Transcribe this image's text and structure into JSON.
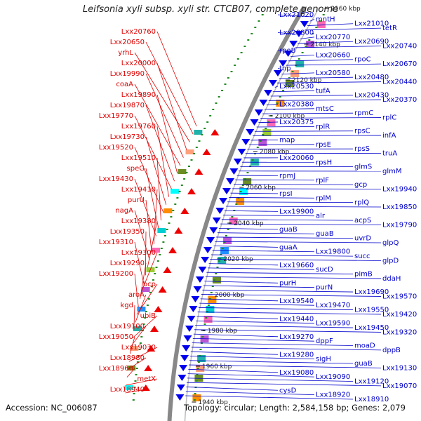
{
  "title": "Leifsonia xyli subsp. xyli str. CTCB07, complete genome",
  "footer": {
    "accession": "Accession: NC_006087",
    "topology": "Topology: circular; Length: 2,584,158 bp; Genes: 2,079"
  },
  "colors": {
    "forward_label": "#dd0000",
    "reverse_label": "#0000cc",
    "forward_feature": "#ee0000",
    "reverse_feature": "#0000ee",
    "backbone": "#888888",
    "orf_marker": "#228b22",
    "tick": "#111111"
  },
  "ruler_labels": [
    "2160 kbp",
    "2140 kbp",
    "2120 kbp",
    "2100 kbp",
    "2080 kbp",
    "2060 kbp",
    "2040 kbp",
    "2020 kbp",
    "2000 kbp",
    "1980 kbp",
    "1960 kbp",
    "1940 kbp"
  ],
  "forward_labels": [
    "Lxx20760",
    "Lxx20650",
    "yrhL",
    "Lxx20000",
    "Lxx19990",
    "coaA",
    "Lxx19890",
    "Lxx19870",
    "Lxx19770",
    "Lxx19760",
    "Lxx19730",
    "Lxx19520",
    "Lxx19510",
    "speG",
    "Lxx19430",
    "Lxx19410",
    "purU",
    "nagA",
    "Lxx19380",
    "Lxx19350",
    "Lxx19310",
    "Lxx19300",
    "Lxx19290",
    "Lxx19200",
    "bcp",
    "aroA",
    "kgd",
    "ubiB",
    "Lxx19100",
    "Lxx19050",
    "Lxx19030",
    "Lxx18980",
    "Lxx18960",
    "metX",
    "Lxx18940"
  ],
  "reverse_labels": [
    "Lxx21020",
    "mntH",
    "Lxx21010",
    "tetR",
    "Lxx20800",
    "Lxx20770",
    "Lxx20690",
    "Lxx20740",
    "rpoB",
    "Lxx20660",
    "rpoC",
    "Lxx20670",
    "tnp",
    "Lxx20580",
    "Lxx20480",
    "Lxx20440",
    "Lxx20530",
    "tufA",
    "Lxx20430",
    "Lxx20370",
    "Lxx20380",
    "mtsC",
    "rpmC",
    "rplC",
    "Lxx20375",
    "rplR",
    "rpsC",
    "infA",
    "map",
    "rpsE",
    "rpsS",
    "truA",
    "Lxx20060",
    "rpsH",
    "glmS",
    "glmM",
    "rpmJ",
    "rplF",
    "gcp",
    "Lxx19940",
    "rpsI",
    "rplM",
    "rplQ",
    "Lxx19850",
    "Lxx19900",
    "alr",
    "acpS",
    "Lxx19790",
    "guaB",
    "guaB",
    "uvrD",
    "glpQ",
    "guaA",
    "Lxx19800",
    "succ",
    "glpD",
    "Lxx19660",
    "sucD",
    "pimB",
    "ddaH",
    "purH",
    "purN",
    "Lxx19690",
    "Lxx19570",
    "Lxx19540",
    "Lxx19470",
    "Lxx19550",
    "Lxx19420",
    "Lxx19440",
    "Lxx19590",
    "Lxx19450",
    "Lxx19320",
    "Lxx19270",
    "dppF",
    "moaD",
    "dppB",
    "Lxx19280",
    "sigH",
    "guaB",
    "Lxx19130",
    "Lxx19080",
    "Lxx19090",
    "Lxx19120",
    "Lxx19070",
    "cysD",
    "Lxx18920",
    "Lxx18910"
  ]
}
